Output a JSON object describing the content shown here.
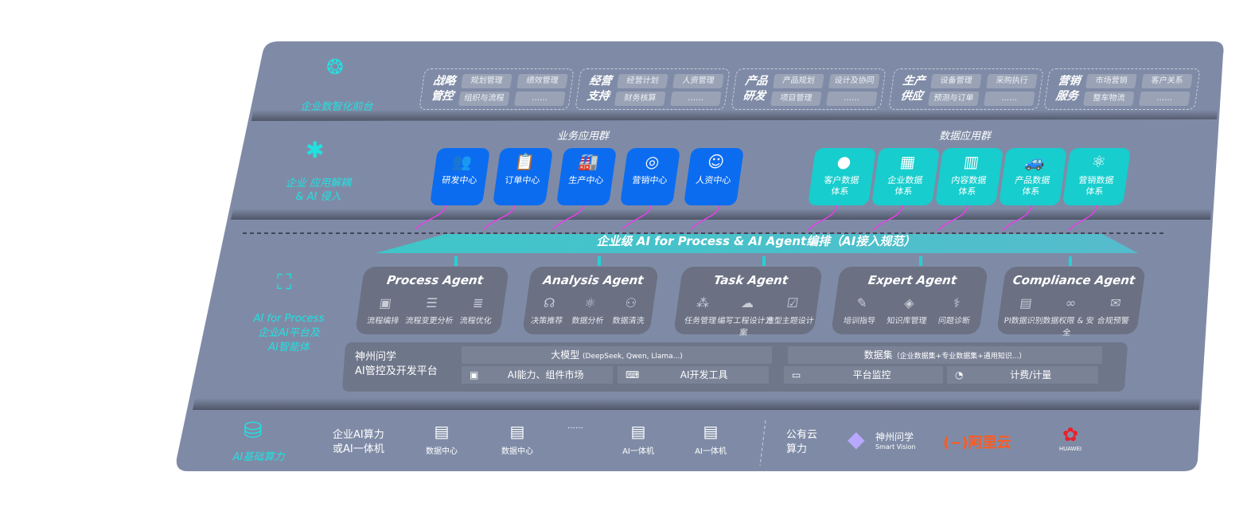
{
  "colors": {
    "platform": "#7f8ba6",
    "accent_cyan": "#22e0e0",
    "business_blue": "#0b6cf0",
    "data_teal": "#17cdcd",
    "agent_card": "#6b7183",
    "arrow_magenta": "#e93ee9"
  },
  "front": {
    "label": "企业数智化前台",
    "icon": "brain-circuit-icon",
    "groups": [
      {
        "title": [
          "战略",
          "管控"
        ],
        "items": [
          "规划管理",
          "绩效管理",
          "组织与流程",
          "……"
        ]
      },
      {
        "title": [
          "经营",
          "支持"
        ],
        "items": [
          "经营计划",
          "人资管理",
          "财务核算",
          "……"
        ]
      },
      {
        "title": [
          "产品",
          "研发"
        ],
        "items": [
          "产品规划",
          "设计及协同",
          "项目管理",
          "……"
        ]
      },
      {
        "title": [
          "生产",
          "供应"
        ],
        "items": [
          "设备管理",
          "采购执行",
          "预测与订单",
          "……"
        ]
      },
      {
        "title": [
          "营销",
          "服务"
        ],
        "items": [
          "市场营销",
          "客户关系",
          "整车物流",
          "……"
        ]
      }
    ]
  },
  "apps": {
    "label": [
      "企业 应用解耦",
      "& AI 侵入"
    ],
    "icon": "molecule-icon",
    "business_title": "业务应用群",
    "business": [
      {
        "label": "研发中心",
        "icon": "users-icon"
      },
      {
        "label": "订单中心",
        "icon": "clipboard-icon"
      },
      {
        "label": "生产中心",
        "icon": "factory-icon"
      },
      {
        "label": "营销中心",
        "icon": "target-icon"
      },
      {
        "label": "人资中心",
        "icon": "person-icon"
      }
    ],
    "data_title": "数据应用群",
    "data": [
      {
        "label": [
          "客户数据",
          "体系"
        ],
        "icon": "user-icon"
      },
      {
        "label": [
          "企业数据",
          "体系"
        ],
        "icon": "building-icon"
      },
      {
        "label": [
          "内容数据",
          "体系"
        ],
        "icon": "books-icon"
      },
      {
        "label": [
          "产品数据",
          "体系"
        ],
        "icon": "car-icon"
      },
      {
        "label": [
          "营销数据",
          "体系"
        ],
        "icon": "atom-icon"
      }
    ]
  },
  "orchestration": "企业级 AI for Process & AI Agent编排（AI接入规范）",
  "ai": {
    "label": [
      "AI for Process",
      "企业AI平台及",
      "AI智能体"
    ],
    "icon": "face-scan-icon",
    "agents": [
      {
        "title": "Process Agent",
        "items": [
          {
            "label": "流程编排",
            "icon": "wave-window-icon"
          },
          {
            "label": "流程变更分析",
            "icon": "list-icon"
          },
          {
            "label": "流程优化",
            "icon": "stack-icon"
          }
        ]
      },
      {
        "title": "Analysis Agent",
        "items": [
          {
            "label": "决策推荐",
            "icon": "head-icon"
          },
          {
            "label": "数据分析",
            "icon": "atom-icon"
          },
          {
            "label": "数据清洗",
            "icon": "robot-icon"
          }
        ]
      },
      {
        "title": "Task Agent",
        "items": [
          {
            "label": "任务管理",
            "icon": "network-icon"
          },
          {
            "label": "编写工程设计方案",
            "icon": "cloud-icon"
          },
          {
            "label": "造型主题设计",
            "icon": "checklist-icon"
          }
        ]
      },
      {
        "title": "Expert Agent",
        "items": [
          {
            "label": "培训指导",
            "icon": "pencil-icon"
          },
          {
            "label": "知识库管理",
            "icon": "layers-icon"
          },
          {
            "label": "问题诊断",
            "icon": "diagnosis-icon"
          }
        ]
      },
      {
        "title": "Compliance Agent",
        "items": [
          {
            "label": "PI数据识别",
            "icon": "id-card-icon"
          },
          {
            "label": "数据权限 & 安全",
            "icon": "link-icon"
          },
          {
            "label": "合规预警",
            "icon": "mail-alert-icon"
          }
        ]
      }
    ],
    "platform": {
      "name": [
        "神州问学",
        "AI管控及开发平台"
      ],
      "model": "大模型",
      "model_note": "(DeepSeek, Qwen, Llama...)",
      "dataset": "数据集",
      "dataset_note": "（企业数据集+专业数据集+通用知识...）",
      "tools": [
        {
          "label": "AI能力、组件市场",
          "icon": "market-icon"
        },
        {
          "label": "AI开发工具",
          "icon": "dev-tool-icon"
        },
        {
          "label": "平台监控",
          "icon": "monitor-icon"
        },
        {
          "label": "计费/计量",
          "icon": "gauge-icon"
        }
      ]
    }
  },
  "infra": {
    "label": "AI基础算力",
    "icon": "database-icon",
    "enterprise": [
      "企业AI算力",
      "或AI一体机"
    ],
    "items": [
      {
        "label": "数据中心",
        "icon": "server-icon"
      },
      {
        "label": "数据中心",
        "icon": "server-icon"
      },
      {
        "label": "……"
      },
      {
        "label": "AI一体机",
        "icon": "server-icon"
      },
      {
        "label": "AI一体机",
        "icon": "server-icon"
      }
    ],
    "public": [
      "公有云",
      "算力"
    ],
    "vendors": [
      {
        "name": "神州问学",
        "sub": "Smart Vision",
        "icon": "diamond-logo"
      },
      {
        "name": "阿里云",
        "icon": "aliyun-logo"
      },
      {
        "name": "HUAWEI",
        "icon": "huawei-logo"
      }
    ]
  }
}
